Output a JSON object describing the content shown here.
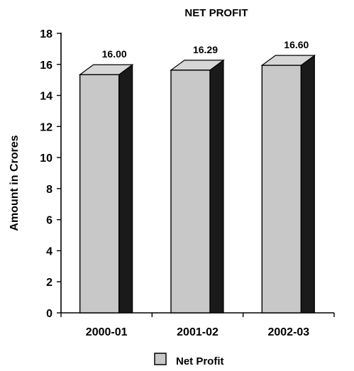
{
  "chart_data": {
    "type": "bar",
    "title": "NET PROFIT",
    "xlabel": "",
    "ylabel": "Amount in Crores",
    "categories": [
      "2000-01",
      "2001-02",
      "2002-03"
    ],
    "series": [
      {
        "name": "Net Profit",
        "values": [
          16.0,
          16.29,
          16.6
        ],
        "labels": [
          "16.00",
          "16.29",
          "16.60"
        ]
      }
    ],
    "ylim": [
      0,
      18
    ],
    "yticks": [
      0,
      2,
      4,
      6,
      8,
      10,
      12,
      14,
      16,
      18
    ],
    "grid": false,
    "legend_position": "bottom-center",
    "style": "3d-bars",
    "colors": {
      "bar_front": "#c8c8c8",
      "bar_top": "#d6d6d6",
      "bar_side": "#1a1a1a",
      "outline": "#000000",
      "legend_swatch": "#c8c8c8"
    }
  }
}
